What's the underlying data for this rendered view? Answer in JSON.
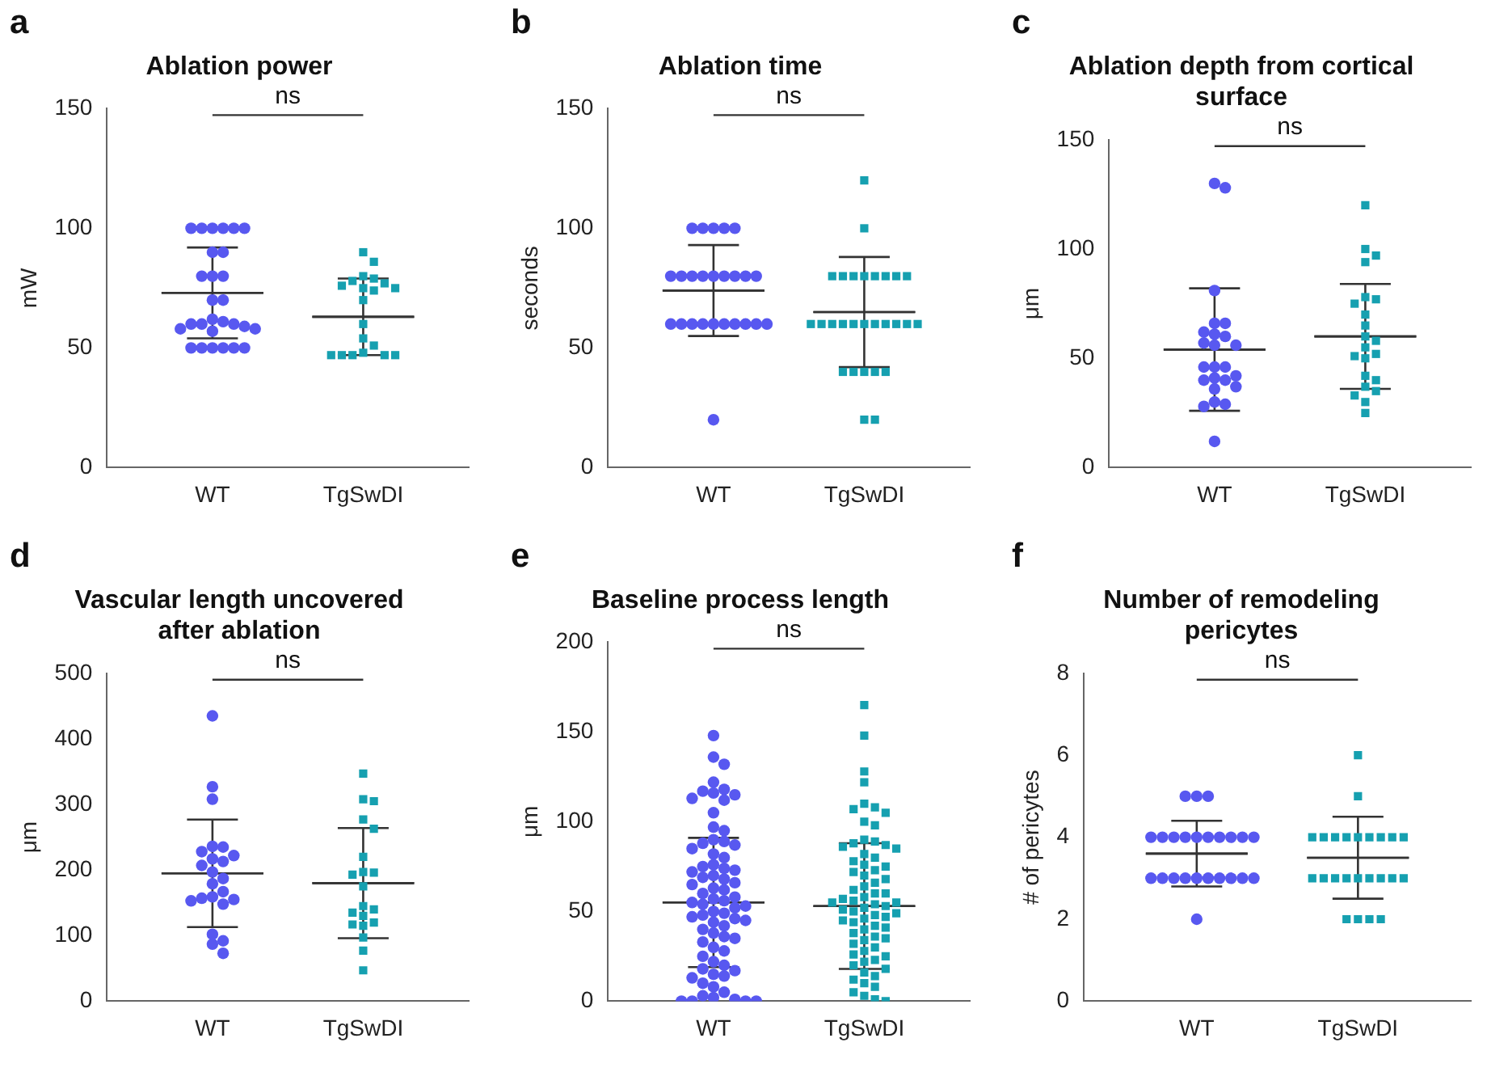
{
  "chart_data": [
    {
      "type": "scatter",
      "title": "Ablation power",
      "ylabel": "mW",
      "categories": [
        "WT",
        "TgSwDI"
      ],
      "ylim": [
        0,
        150
      ],
      "yticks": [
        0,
        50,
        100,
        150
      ],
      "annotations": [
        "a",
        "ns"
      ],
      "series": [
        {
          "color": "#5858f0",
          "marker": "circle",
          "x": [
            "WT",
            "WT",
            "WT",
            "WT",
            "WT",
            "WT",
            "WT",
            "WT",
            "WT",
            "WT",
            "WT",
            "WT",
            "WT",
            "WT",
            "WT",
            "WT",
            "WT",
            "WT",
            "WT",
            "WT",
            "WT",
            "WT",
            "WT",
            "WT",
            "WT",
            "WT",
            "WT",
            "WT"
          ],
          "values": [
            100,
            100,
            100,
            100,
            100,
            100,
            90,
            90,
            80,
            80,
            80,
            70,
            70,
            62,
            61,
            60,
            60,
            60,
            59,
            58,
            58,
            57,
            50,
            50,
            50,
            50,
            50,
            50
          ]
        },
        {
          "color": "#16a0b0",
          "marker": "square",
          "x": [
            "TgSwDI",
            "TgSwDI",
            "TgSwDI",
            "TgSwDI",
            "TgSwDI",
            "TgSwDI",
            "TgSwDI",
            "TgSwDI",
            "TgSwDI",
            "TgSwDI",
            "TgSwDI",
            "TgSwDI",
            "TgSwDI",
            "TgSwDI",
            "TgSwDI",
            "TgSwDI",
            "TgSwDI",
            "TgSwDI",
            "TgSwDI",
            "TgSwDI"
          ],
          "values": [
            90,
            86,
            80,
            79,
            78,
            77,
            76,
            75,
            75,
            74,
            70,
            60,
            54,
            51,
            48,
            47,
            47,
            47,
            47,
            47
          ]
        },
        {
          "type": "box",
          "color": "#333333",
          "boxes": [
            {
              "low": 54,
              "q1": 73,
              "median": 73,
              "q3": 73,
              "high": 92
            },
            {
              "low": 47,
              "q1": 63,
              "median": 63,
              "q3": 63,
              "high": 79
            }
          ]
        }
      ]
    },
    {
      "type": "scatter",
      "title": "Ablation time",
      "ylabel": "seconds",
      "categories": [
        "WT",
        "TgSwDI"
      ],
      "ylim": [
        0,
        150
      ],
      "yticks": [
        0,
        50,
        100,
        150
      ],
      "annotations": [
        "b",
        "ns"
      ],
      "series": [
        {
          "color": "#5858f0",
          "marker": "circle",
          "x": [
            "WT",
            "WT",
            "WT",
            "WT",
            "WT",
            "WT",
            "WT",
            "WT",
            "WT",
            "WT",
            "WT",
            "WT",
            "WT",
            "WT",
            "WT",
            "WT",
            "WT",
            "WT",
            "WT",
            "WT",
            "WT",
            "WT",
            "WT",
            "WT",
            "WT"
          ],
          "values": [
            100,
            100,
            100,
            100,
            100,
            80,
            80,
            80,
            80,
            80,
            80,
            80,
            80,
            80,
            60,
            60,
            60,
            60,
            60,
            60,
            60,
            60,
            60,
            60,
            20
          ]
        },
        {
          "color": "#16a0b0",
          "marker": "square",
          "x": [
            "TgSwDI",
            "TgSwDI",
            "TgSwDI",
            "TgSwDI",
            "TgSwDI",
            "TgSwDI",
            "TgSwDI",
            "TgSwDI",
            "TgSwDI",
            "TgSwDI",
            "TgSwDI",
            "TgSwDI",
            "TgSwDI",
            "TgSwDI",
            "TgSwDI",
            "TgSwDI",
            "TgSwDI",
            "TgSwDI",
            "TgSwDI",
            "TgSwDI",
            "TgSwDI",
            "TgSwDI",
            "TgSwDI",
            "TgSwDI",
            "TgSwDI",
            "TgSwDI",
            "TgSwDI",
            "TgSwDI"
          ],
          "values": [
            120,
            100,
            80,
            80,
            80,
            80,
            80,
            80,
            80,
            80,
            60,
            60,
            60,
            60,
            60,
            60,
            60,
            60,
            60,
            60,
            60,
            40,
            40,
            40,
            40,
            40,
            20,
            20
          ]
        },
        {
          "type": "box",
          "color": "#333333",
          "boxes": [
            {
              "low": 55,
              "q1": 74,
              "median": 74,
              "q3": 74,
              "high": 93
            },
            {
              "low": 42,
              "q1": 65,
              "median": 65,
              "q3": 65,
              "high": 88
            }
          ]
        }
      ]
    },
    {
      "type": "scatter",
      "title": "Ablation depth from cortical surface",
      "ylabel": "μm",
      "categories": [
        "WT",
        "TgSwDI"
      ],
      "ylim": [
        0,
        150
      ],
      "yticks": [
        0,
        50,
        100,
        150
      ],
      "annotations": [
        "c",
        "ns"
      ],
      "series": [
        {
          "color": "#5858f0",
          "marker": "circle",
          "x": [
            "WT",
            "WT",
            "WT",
            "WT",
            "WT",
            "WT",
            "WT",
            "WT",
            "WT",
            "WT",
            "WT",
            "WT",
            "WT",
            "WT",
            "WT",
            "WT",
            "WT",
            "WT",
            "WT",
            "WT",
            "WT",
            "WT",
            "WT",
            "WT"
          ],
          "values": [
            130,
            128,
            81,
            66,
            66,
            62,
            61,
            60,
            57,
            56,
            56,
            46,
            46,
            46,
            42,
            41,
            40,
            40,
            37,
            36,
            30,
            29,
            28,
            12
          ]
        },
        {
          "color": "#16a0b0",
          "marker": "square",
          "x": [
            "TgSwDI",
            "TgSwDI",
            "TgSwDI",
            "TgSwDI",
            "TgSwDI",
            "TgSwDI",
            "TgSwDI",
            "TgSwDI",
            "TgSwDI",
            "TgSwDI",
            "TgSwDI",
            "TgSwDI",
            "TgSwDI",
            "TgSwDI",
            "TgSwDI",
            "TgSwDI",
            "TgSwDI",
            "TgSwDI",
            "TgSwDI",
            "TgSwDI",
            "TgSwDI",
            "TgSwDI"
          ],
          "values": [
            120,
            100,
            97,
            94,
            78,
            77,
            75,
            70,
            65,
            60,
            58,
            55,
            52,
            51,
            50,
            42,
            40,
            37,
            35,
            33,
            30,
            25
          ]
        },
        {
          "type": "box",
          "color": "#333333",
          "boxes": [
            {
              "low": 26,
              "q1": 54,
              "median": 54,
              "q3": 54,
              "high": 82
            },
            {
              "low": 36,
              "q1": 60,
              "median": 60,
              "q3": 60,
              "high": 84
            }
          ]
        }
      ]
    },
    {
      "type": "scatter",
      "title": "Vascular length uncovered after ablation",
      "ylabel": "μm",
      "categories": [
        "WT",
        "TgSwDI"
      ],
      "ylim": [
        0,
        500
      ],
      "yticks": [
        0,
        100,
        200,
        300,
        400,
        500
      ],
      "annotations": [
        "d",
        "ns"
      ],
      "series": [
        {
          "color": "#5858f0",
          "marker": "circle",
          "x": [
            "WT",
            "WT",
            "WT",
            "WT",
            "WT",
            "WT",
            "WT",
            "WT",
            "WT",
            "WT",
            "WT",
            "WT",
            "WT",
            "WT",
            "WT",
            "WT",
            "WT",
            "WT",
            "WT",
            "WT",
            "WT",
            "WT",
            "WT"
          ],
          "values": [
            435,
            327,
            308,
            236,
            235,
            228,
            222,
            217,
            213,
            207,
            197,
            187,
            179,
            167,
            159,
            157,
            155,
            153,
            148,
            102,
            92,
            87,
            73
          ]
        },
        {
          "color": "#16a0b0",
          "marker": "square",
          "x": [
            "TgSwDI",
            "TgSwDI",
            "TgSwDI",
            "TgSwDI",
            "TgSwDI",
            "TgSwDI",
            "TgSwDI",
            "TgSwDI",
            "TgSwDI",
            "TgSwDI",
            "TgSwDI",
            "TgSwDI",
            "TgSwDI",
            "TgSwDI",
            "TgSwDI",
            "TgSwDI",
            "TgSwDI",
            "TgSwDI",
            "TgSwDI",
            "TgSwDI"
          ],
          "values": [
            347,
            308,
            305,
            277,
            263,
            220,
            197,
            196,
            193,
            175,
            145,
            140,
            135,
            130,
            120,
            117,
            115,
            97,
            77,
            47
          ]
        },
        {
          "type": "box",
          "color": "#333333",
          "boxes": [
            {
              "low": 113,
              "q1": 195,
              "median": 195,
              "q3": 195,
              "high": 277
            },
            {
              "low": 96,
              "q1": 180,
              "median": 180,
              "q3": 180,
              "high": 264
            }
          ]
        }
      ]
    },
    {
      "type": "scatter",
      "title": "Baseline process length",
      "ylabel": "μm",
      "categories": [
        "WT",
        "TgSwDI"
      ],
      "ylim": [
        0,
        200
      ],
      "yticks": [
        0,
        50,
        100,
        150,
        200
      ],
      "annotations": [
        "e",
        "ns"
      ],
      "series": [
        {
          "color": "#5858f0",
          "marker": "circle",
          "x": [
            "WT",
            "WT",
            "WT",
            "WT",
            "WT",
            "WT",
            "WT",
            "WT",
            "WT",
            "WT",
            "WT",
            "WT",
            "WT",
            "WT",
            "WT",
            "WT",
            "WT",
            "WT",
            "WT",
            "WT",
            "WT",
            "WT",
            "WT",
            "WT",
            "WT",
            "WT",
            "WT",
            "WT",
            "WT",
            "WT",
            "WT",
            "WT",
            "WT",
            "WT",
            "WT",
            "WT",
            "WT",
            "WT",
            "WT",
            "WT",
            "WT",
            "WT",
            "WT",
            "WT",
            "WT",
            "WT",
            "WT",
            "WT",
            "WT",
            "WT",
            "WT",
            "WT",
            "WT",
            "WT",
            "WT",
            "WT",
            "WT",
            "WT",
            "WT",
            "WT",
            "WT",
            "WT",
            "WT",
            "WT",
            "WT",
            "WT",
            "WT",
            "WT",
            "WT",
            "WT",
            "WT",
            "WT",
            "WT"
          ],
          "values": [
            148,
            136,
            132,
            122,
            118,
            117,
            116,
            115,
            113,
            112,
            105,
            97,
            95,
            90,
            89,
            88,
            87,
            85,
            82,
            80,
            76,
            75,
            74,
            73,
            72,
            70,
            69,
            68,
            66,
            65,
            63,
            62,
            60,
            58,
            57,
            56,
            55,
            54,
            53,
            52,
            50,
            49,
            48,
            47,
            46,
            45,
            44,
            42,
            40,
            38,
            36,
            35,
            33,
            30,
            28,
            25,
            22,
            20,
            18,
            17,
            15,
            14,
            13,
            10,
            8,
            5,
            3,
            2,
            1,
            0,
            0,
            0,
            0
          ]
        },
        {
          "color": "#16a0b0",
          "marker": "square",
          "x": [
            "TgSwDI",
            "TgSwDI",
            "TgSwDI",
            "TgSwDI",
            "TgSwDI",
            "TgSwDI",
            "TgSwDI",
            "TgSwDI",
            "TgSwDI",
            "TgSwDI",
            "TgSwDI",
            "TgSwDI",
            "TgSwDI",
            "TgSwDI",
            "TgSwDI",
            "TgSwDI",
            "TgSwDI",
            "TgSwDI",
            "TgSwDI",
            "TgSwDI",
            "TgSwDI",
            "TgSwDI",
            "TgSwDI",
            "TgSwDI",
            "TgSwDI",
            "TgSwDI",
            "TgSwDI",
            "TgSwDI",
            "TgSwDI",
            "TgSwDI",
            "TgSwDI",
            "TgSwDI",
            "TgSwDI",
            "TgSwDI",
            "TgSwDI",
            "TgSwDI",
            "TgSwDI",
            "TgSwDI",
            "TgSwDI",
            "TgSwDI",
            "TgSwDI",
            "TgSwDI",
            "TgSwDI",
            "TgSwDI",
            "TgSwDI",
            "TgSwDI",
            "TgSwDI",
            "TgSwDI",
            "TgSwDI",
            "TgSwDI",
            "TgSwDI",
            "TgSwDI",
            "TgSwDI",
            "TgSwDI",
            "TgSwDI",
            "TgSwDI",
            "TgSwDI",
            "TgSwDI",
            "TgSwDI",
            "TgSwDI",
            "TgSwDI",
            "TgSwDI",
            "TgSwDI",
            "TgSwDI",
            "TgSwDI",
            "TgSwDI",
            "TgSwDI",
            "TgSwDI",
            "TgSwDI",
            "TgSwDI",
            "TgSwDI"
          ],
          "values": [
            165,
            148,
            128,
            122,
            110,
            108,
            107,
            105,
            100,
            98,
            90,
            89,
            88,
            87,
            86,
            85,
            82,
            80,
            78,
            76,
            75,
            73,
            72,
            70,
            68,
            66,
            64,
            62,
            60,
            60,
            58,
            57,
            56,
            55,
            55,
            54,
            53,
            52,
            51,
            50,
            49,
            48,
            47,
            46,
            45,
            44,
            42,
            41,
            40,
            38,
            36,
            35,
            34,
            32,
            30,
            28,
            26,
            25,
            23,
            22,
            20,
            18,
            16,
            14,
            12,
            10,
            8,
            5,
            3,
            1,
            0
          ]
        },
        {
          "type": "box",
          "color": "#333333",
          "boxes": [
            {
              "low": 19,
              "q1": 55,
              "median": 55,
              "q3": 55,
              "high": 91
            },
            {
              "low": 18,
              "q1": 53,
              "median": 53,
              "q3": 53,
              "high": 88
            }
          ]
        }
      ]
    },
    {
      "type": "scatter",
      "title": "Number of remodeling pericytes",
      "ylabel": "# of pericytes",
      "categories": [
        "WT",
        "TgSwDI"
      ],
      "ylim": [
        0,
        8
      ],
      "yticks": [
        0,
        2,
        4,
        6,
        8
      ],
      "annotations": [
        "f",
        "ns"
      ],
      "series": [
        {
          "color": "#5858f0",
          "marker": "circle",
          "x": [
            "WT",
            "WT",
            "WT",
            "WT",
            "WT",
            "WT",
            "WT",
            "WT",
            "WT",
            "WT",
            "WT",
            "WT",
            "WT",
            "WT",
            "WT",
            "WT",
            "WT",
            "WT",
            "WT",
            "WT",
            "WT",
            "WT",
            "WT",
            "WT"
          ],
          "values": [
            5,
            5,
            5,
            4,
            4,
            4,
            4,
            4,
            4,
            4,
            4,
            4,
            4,
            3,
            3,
            3,
            3,
            3,
            3,
            3,
            3,
            3,
            3,
            2
          ]
        },
        {
          "color": "#16a0b0",
          "marker": "square",
          "x": [
            "TgSwDI",
            "TgSwDI",
            "TgSwDI",
            "TgSwDI",
            "TgSwDI",
            "TgSwDI",
            "TgSwDI",
            "TgSwDI",
            "TgSwDI",
            "TgSwDI",
            "TgSwDI",
            "TgSwDI",
            "TgSwDI",
            "TgSwDI",
            "TgSwDI",
            "TgSwDI",
            "TgSwDI",
            "TgSwDI",
            "TgSwDI",
            "TgSwDI",
            "TgSwDI",
            "TgSwDI",
            "TgSwDI",
            "TgSwDI"
          ],
          "values": [
            6,
            5,
            4,
            4,
            4,
            4,
            4,
            4,
            4,
            4,
            4,
            3,
            3,
            3,
            3,
            3,
            3,
            3,
            3,
            3,
            2,
            2,
            2,
            2
          ]
        },
        {
          "type": "box",
          "color": "#333333",
          "boxes": [
            {
              "low": 2.8,
              "q1": 3.6,
              "median": 3.6,
              "q3": 3.6,
              "high": 4.4
            },
            {
              "low": 2.5,
              "q1": 3.5,
              "median": 3.5,
              "q3": 3.5,
              "high": 4.5
            }
          ]
        }
      ]
    }
  ]
}
